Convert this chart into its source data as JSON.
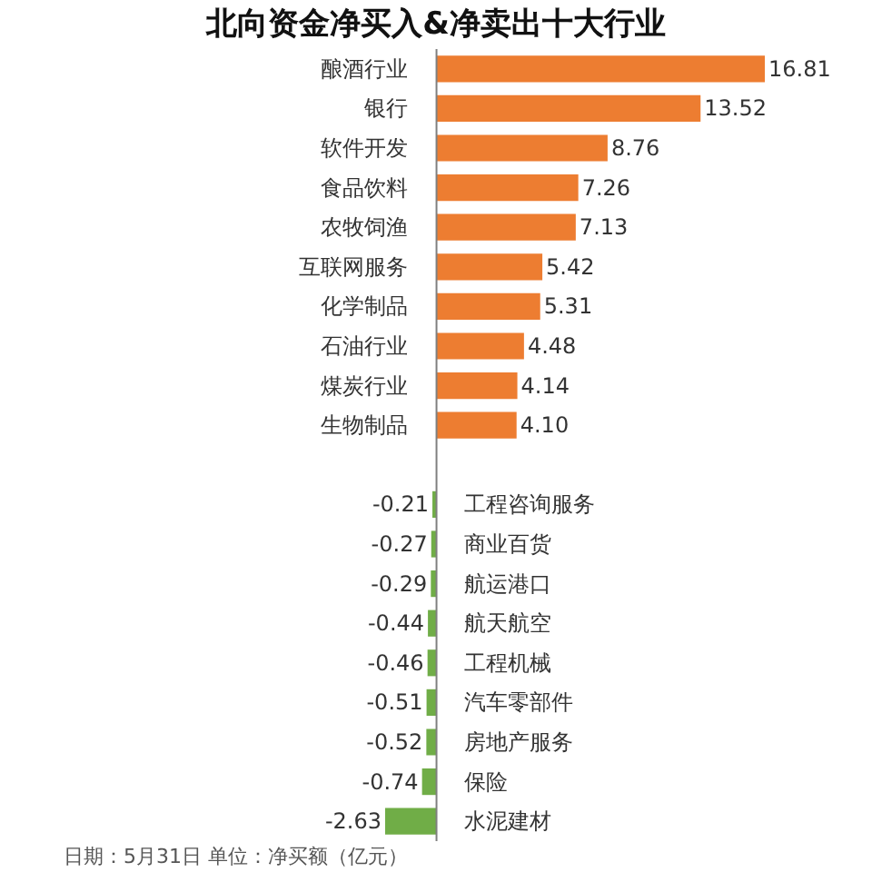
{
  "chart_data": {
    "type": "bar",
    "orientation": "horizontal",
    "title": "北向资金净买入&净卖出十大行业",
    "categories": [
      "酿酒行业",
      "银行",
      "软件开发",
      "食品饮料",
      "农牧饲渔",
      "互联网服务",
      "化学制品",
      "石油行业",
      "煤炭行业",
      "生物制品",
      null,
      "工程咨询服务",
      "商业百货",
      "航运港口",
      "航天航空",
      "工程机械",
      "汽车零部件",
      "房地产服务",
      "保险",
      "水泥建材"
    ],
    "values": [
      16.81,
      13.52,
      8.76,
      7.26,
      7.13,
      5.42,
      5.31,
      4.48,
      4.14,
      4.1,
      null,
      -0.21,
      -0.27,
      -0.29,
      -0.44,
      -0.46,
      -0.51,
      -0.52,
      -0.74,
      -2.63
    ],
    "value_labels": [
      "16.81",
      "13.52",
      "8.76",
      "7.26",
      "7.13",
      "5.42",
      "5.31",
      "4.48",
      "4.14",
      "4.10",
      null,
      "-0.21",
      "-0.27",
      "-0.29",
      "-0.44",
      "-0.46",
      "-0.51",
      "-0.52",
      "-0.74",
      "-2.63"
    ],
    "colors": [
      "#ed7d31",
      "#ed7d31",
      "#ed7d31",
      "#ed7d31",
      "#ed7d31",
      "#ed7d31",
      "#ed7d31",
      "#ed7d31",
      "#ed7d31",
      "#ed7d31",
      "#70ad47",
      "#70ad47",
      "#70ad47",
      "#70ad47",
      "#70ad47",
      "#70ad47",
      "#70ad47",
      "#70ad47",
      "#70ad47",
      "#70ad47"
    ],
    "tick_labels": "y",
    "annotations": [
      "日期：5月31日 单位：净买额（亿元）"
    ]
  }
}
